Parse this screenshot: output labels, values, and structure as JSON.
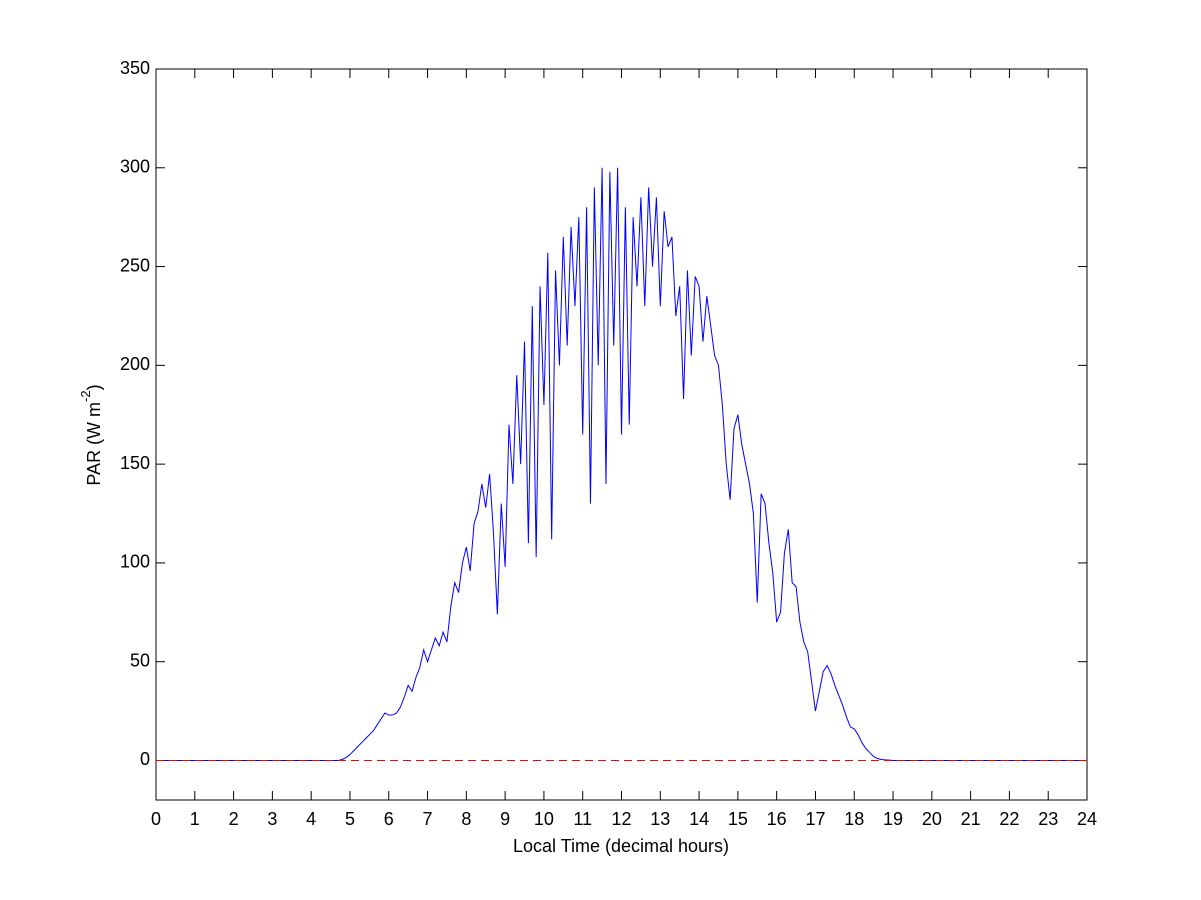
{
  "chart_data": {
    "type": "line",
    "x_label": "Local Time (decimal hours)",
    "y_label": {
      "text": "PAR (W m",
      "superscript": "-2",
      "suffix": ")"
    },
    "x": [
      0,
      4.7,
      4.8,
      4.9,
      5.0,
      5.1,
      5.2,
      5.3,
      5.4,
      5.5,
      5.6,
      5.7,
      5.8,
      5.9,
      6.0,
      6.1,
      6.2,
      6.3,
      6.4,
      6.5,
      6.6,
      6.7,
      6.8,
      6.9,
      7.0,
      7.1,
      7.2,
      7.3,
      7.4,
      7.5,
      7.6,
      7.7,
      7.8,
      7.9,
      8.0,
      8.1,
      8.2,
      8.3,
      8.4,
      8.5,
      8.6,
      8.7,
      8.8,
      8.9,
      9.0,
      9.1,
      9.2,
      9.3,
      9.4,
      9.5,
      9.6,
      9.7,
      9.8,
      9.9,
      10.0,
      10.1,
      10.2,
      10.3,
      10.4,
      10.5,
      10.6,
      10.7,
      10.8,
      10.9,
      11.0,
      11.1,
      11.2,
      11.3,
      11.4,
      11.5,
      11.6,
      11.7,
      11.8,
      11.9,
      12.0,
      12.1,
      12.2,
      12.3,
      12.4,
      12.5,
      12.6,
      12.7,
      12.8,
      12.9,
      13.0,
      13.1,
      13.2,
      13.3,
      13.4,
      13.5,
      13.6,
      13.7,
      13.8,
      13.9,
      14.0,
      14.1,
      14.2,
      14.3,
      14.4,
      14.5,
      14.6,
      14.7,
      14.8,
      14.9,
      15.0,
      15.1,
      15.2,
      15.3,
      15.4,
      15.5,
      15.6,
      15.7,
      15.8,
      15.9,
      16.0,
      16.1,
      16.2,
      16.3,
      16.4,
      16.5,
      16.6,
      16.7,
      16.8,
      16.9,
      17.0,
      17.1,
      17.2,
      17.3,
      17.4,
      17.5,
      17.6,
      17.7,
      17.8,
      17.9,
      18.0,
      18.1,
      18.2,
      18.3,
      18.4,
      18.5,
      18.6,
      18.7,
      18.8,
      18.9,
      19.0,
      24
    ],
    "series": [
      {
        "color": "#0000ff",
        "values": [
          0,
          0,
          0.5,
          1.5,
          3,
          5,
          7,
          9,
          11,
          13,
          15,
          18,
          21,
          24,
          23,
          23,
          24,
          27,
          32,
          38,
          35,
          42,
          47,
          56,
          50,
          56,
          62,
          58,
          65,
          60,
          78,
          90,
          85,
          100,
          108,
          96,
          120,
          126,
          140,
          128,
          145,
          115,
          74,
          130,
          98,
          170,
          140,
          195,
          150,
          212,
          110,
          230,
          103,
          240,
          180,
          257,
          112,
          248,
          200,
          265,
          210,
          270,
          230,
          275,
          165,
          280,
          130,
          290,
          200,
          300,
          140,
          298,
          210,
          300,
          165,
          280,
          170,
          275,
          240,
          285,
          230,
          290,
          250,
          285,
          230,
          278,
          260,
          265,
          225,
          240,
          183,
          248,
          205,
          245,
          240,
          212,
          235,
          220,
          205,
          200,
          180,
          150,
          132,
          168,
          175,
          160,
          150,
          140,
          125,
          80,
          135,
          130,
          110,
          95,
          70,
          75,
          105,
          117,
          90,
          88,
          70,
          60,
          55,
          40,
          25,
          35,
          45,
          48,
          44,
          38,
          33,
          28,
          22,
          17,
          16,
          13,
          9,
          6,
          4,
          2,
          1,
          0.5,
          0.3,
          0.2,
          0,
          0
        ]
      }
    ],
    "reference_line": {
      "value": 0,
      "color": "#ff0000",
      "style": "dashed"
    },
    "xlim": [
      0,
      24
    ],
    "xticks": [
      0,
      1,
      2,
      3,
      4,
      5,
      6,
      7,
      8,
      9,
      10,
      11,
      12,
      13,
      14,
      15,
      16,
      17,
      18,
      19,
      20,
      21,
      22,
      23,
      24
    ],
    "ylim": [
      -20,
      350
    ],
    "yticks": [
      0,
      50,
      100,
      150,
      200,
      250,
      300,
      350
    ],
    "grid": false
  }
}
